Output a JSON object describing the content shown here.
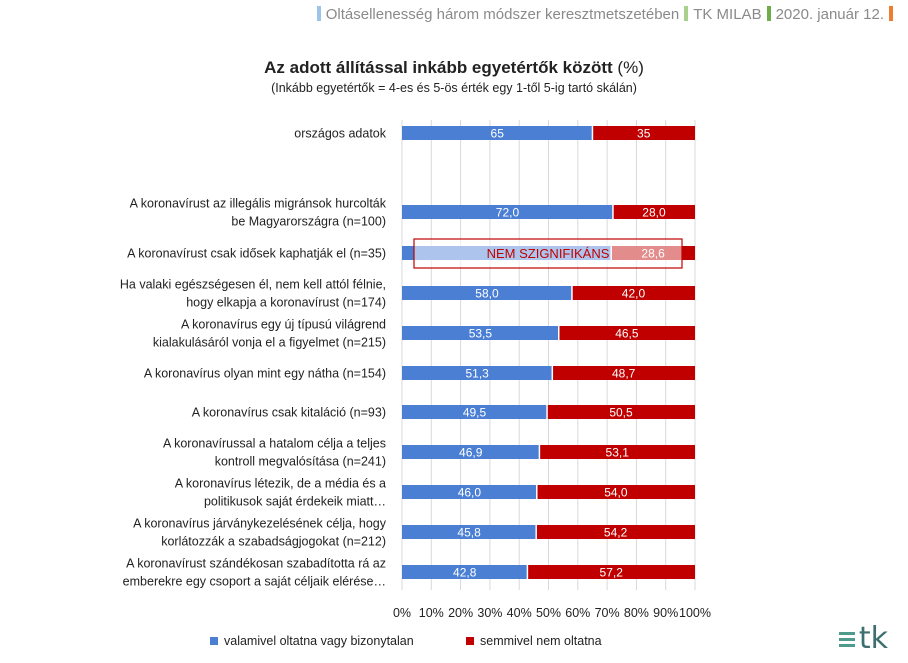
{
  "header": {
    "segments": [
      "Oltásellenesség három módszer keresztmetszetében",
      "TK MILAB",
      "2020. január 12."
    ],
    "colors": [
      "#9dc3e6",
      "#a9d18e",
      "#70ad47",
      "#ed7d31"
    ]
  },
  "chart_data": {
    "type": "bar",
    "stacked": true,
    "orientation": "horizontal",
    "title": "Az adott állítással inkább egyetértők között",
    "title_unit": "(%)",
    "subtitle": "(Inkább egyetértők = 4-es és 5-ös érték egy 1-től 5-ig tartó skálán)",
    "categories": [
      [
        "országos adatok"
      ],
      [
        "A koronavírust az illegális migránsok hurcolták",
        "be Magyarországra (n=100)"
      ],
      [
        "A koronavírust csak idősek kaphatják el (n=35)"
      ],
      [
        "Ha valaki egészségesen él, nem kell attól félnie,",
        "hogy elkapja a koronavírust (n=174)"
      ],
      [
        "A koronavírus egy új típusú világrend",
        "kialakulásáról vonja el a figyelmet (n=215)"
      ],
      [
        "A koronavírus olyan mint egy nátha (n=154)"
      ],
      [
        "A koronavírus csak kitaláció (n=93)"
      ],
      [
        "A koronavírussal a hatalom célja a teljes",
        "kontroll megvalósítása (n=241)"
      ],
      [
        "A koronavírus létezik, de a média és a",
        "politikusok saját érdekeik miatt…"
      ],
      [
        "A koronavírus járványkezelésének célja, hogy",
        "korlátozzák a szabadságjogokat (n=212)"
      ],
      [
        "A koronavírust szándékosan szabadította rá az",
        "emberekre egy csoport a saját céljaik elérése…"
      ]
    ],
    "series": [
      {
        "name": "valamivel oltatna vagy bizonytalan",
        "color": "#4a7fd4",
        "values": [
          65,
          72.0,
          71.4,
          58.0,
          53.5,
          51.3,
          49.5,
          46.9,
          46.0,
          45.8,
          42.8
        ],
        "labels": [
          "65",
          "72,0",
          "",
          "58,0",
          "53,5",
          "51,3",
          "49,5",
          "46,9",
          "46,0",
          "45,8",
          "42,8"
        ]
      },
      {
        "name": "semmivel nem oltatna",
        "color": "#c00000",
        "values": [
          35,
          28.0,
          28.6,
          42.0,
          46.5,
          48.7,
          50.5,
          53.1,
          54.0,
          54.2,
          57.2
        ],
        "labels": [
          "35",
          "28,0",
          "28,6",
          "42,0",
          "46,5",
          "48,7",
          "50,5",
          "53,1",
          "54,0",
          "54,2",
          "57,2"
        ]
      }
    ],
    "xlim": [
      0,
      100
    ],
    "xticks": [
      "0%",
      "10%",
      "20%",
      "30%",
      "40%",
      "50%",
      "60%",
      "70%",
      "80%",
      "90%",
      "100%"
    ],
    "annotation": {
      "text": "NEM SZIGNIFIKÁNS",
      "row": 2,
      "color": "#c00000"
    },
    "grid": true,
    "legend_position": "bottom"
  }
}
